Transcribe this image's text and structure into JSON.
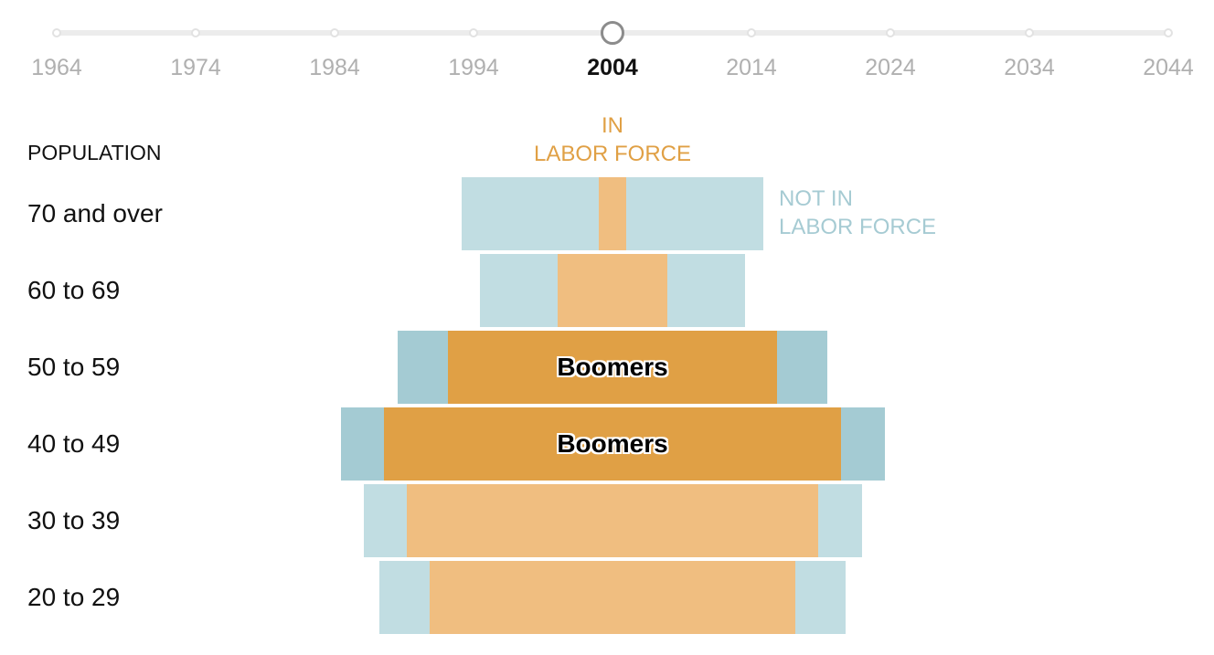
{
  "timeline": {
    "years": [
      "1964",
      "1974",
      "1984",
      "1994",
      "2004",
      "2014",
      "2024",
      "2034",
      "2044"
    ],
    "selected": "2004"
  },
  "population_header": "POPULATION",
  "legend": {
    "in_labor_force": [
      "IN",
      "LABOR FORCE"
    ],
    "not_in_labor_force": [
      "NOT IN",
      "LABOR FORCE"
    ]
  },
  "colors": {
    "in_labor_force": "#f0be80",
    "not_in_labor_force": "#c1dde2",
    "boomers_in_labor_force": "#e0a045",
    "boomers_not_in_labor_force": "#a4cbd3",
    "in_label_text": "#e0a045",
    "not_in_label_text": "#a6cbd3"
  },
  "chart_data": {
    "type": "bar",
    "subtype": "population pyramid (centered stacked bars)",
    "year": "2004",
    "categories": [
      "70 and over",
      "60 to 69",
      "50 to 59",
      "40 to 49",
      "30 to 39",
      "20 to 29"
    ],
    "series": [
      {
        "name": "IN LABOR FORCE",
        "values": [
          3.0,
          12.0,
          36.0,
          50.0,
          45.0,
          40.0
        ]
      },
      {
        "name": "NOT IN LABOR FORCE",
        "values": [
          30.0,
          17.0,
          11.0,
          9.5,
          9.5,
          11.0
        ]
      }
    ],
    "highlight_label": "Boomers",
    "highlighted_categories": [
      "50 to 59",
      "40 to 49"
    ],
    "unit": "relative population (estimated, no scale shown)"
  }
}
